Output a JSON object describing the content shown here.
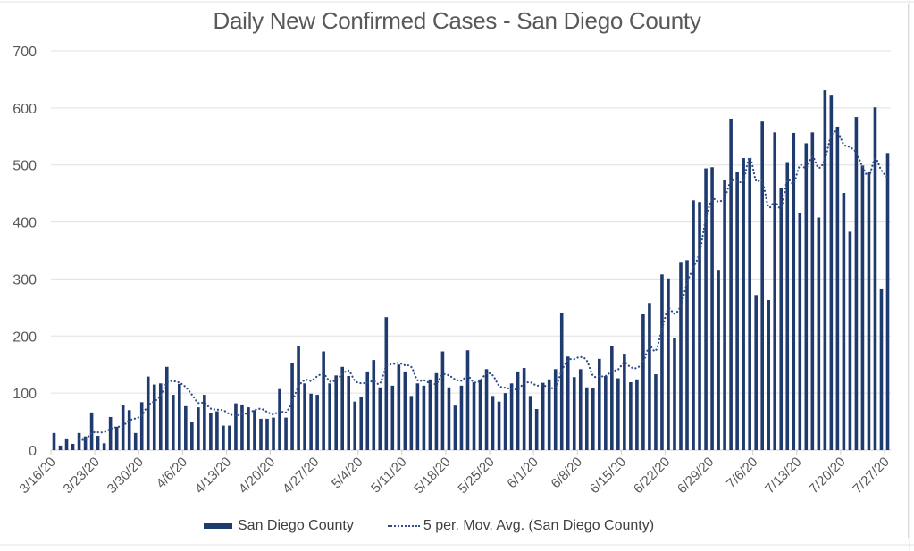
{
  "chart_data": {
    "type": "bar",
    "title": "Daily New Confirmed Cases - San Diego County",
    "xlabel": "",
    "ylabel": "",
    "ylim": [
      0,
      700
    ],
    "y_ticks": [
      0,
      100,
      200,
      300,
      400,
      500,
      600,
      700
    ],
    "x_tick_labels": [
      "3/16/20",
      "3/23/20",
      "3/30/20",
      "4/6/20",
      "4/13/20",
      "4/20/20",
      "4/27/20",
      "5/4/20",
      "5/11/20",
      "5/18/20",
      "5/25/20",
      "6/1/20",
      "6/8/20",
      "6/15/20",
      "6/22/20",
      "6/29/20",
      "7/6/20",
      "7/13/20",
      "7/20/20",
      "7/27/20"
    ],
    "start_date": "3/16/20",
    "end_date": "7/27/20",
    "grid": "horizontal",
    "legend_position": "bottom",
    "series": [
      {
        "name": "San Diego County",
        "type": "bar",
        "color": "#1f3a6e",
        "values": [
          30,
          8,
          19,
          11,
          30,
          24,
          66,
          25,
          12,
          58,
          41,
          79,
          70,
          30,
          84,
          129,
          115,
          117,
          146,
          97,
          116,
          77,
          50,
          75,
          97,
          65,
          68,
          43,
          43,
          82,
          80,
          75,
          70,
          55,
          55,
          57,
          107,
          57,
          152,
          182,
          117,
          99,
          97,
          173,
          117,
          131,
          146,
          130,
          85,
          94,
          138,
          158,
          110,
          233,
          113,
          150,
          138,
          95,
          117,
          113,
          124,
          135,
          173,
          110,
          78,
          113,
          175,
          119,
          124,
          142,
          95,
          85,
          100,
          117,
          138,
          144,
          95,
          72,
          118,
          124,
          142,
          240,
          164,
          128,
          142,
          110,
          108,
          160,
          130,
          183,
          126,
          169,
          119,
          124,
          238,
          258,
          133,
          308,
          301,
          196,
          330,
          333,
          438,
          435,
          494,
          496,
          316,
          473,
          581,
          487,
          512,
          511,
          272,
          576,
          263,
          557,
          460,
          505,
          556,
          416,
          538,
          557,
          408,
          631,
          623,
          567,
          451,
          383,
          584,
          499,
          487,
          601,
          282,
          521
        ]
      },
      {
        "name": "5 per. Mov. Avg. (San Diego County)",
        "type": "moving-average",
        "period": 5,
        "color": "#2e4d8a",
        "line_style": "dotted"
      }
    ]
  },
  "legend": {
    "items": [
      "San Diego County",
      "5 per. Mov. Avg. (San Diego County)"
    ]
  }
}
